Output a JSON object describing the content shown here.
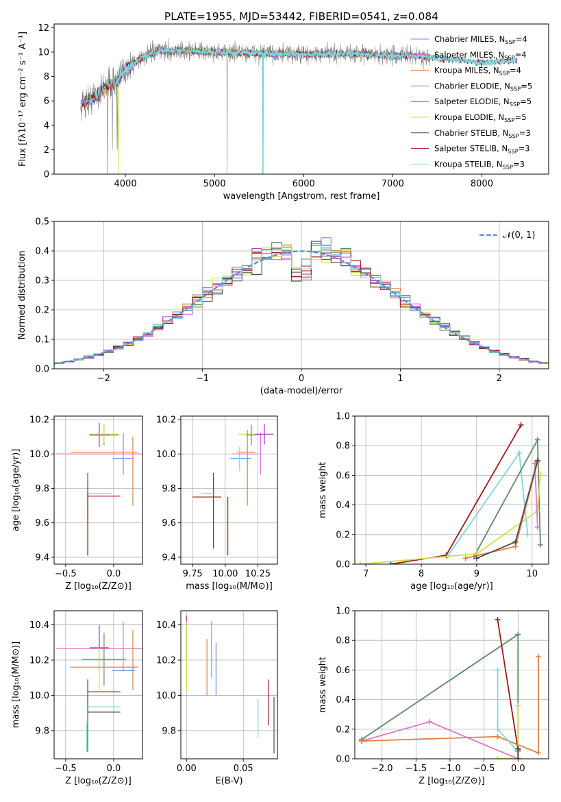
{
  "title": "PLATE=1955, MJD=53442, FIBERID=0541, z=0.084",
  "colors": {
    "Chabrier MILES": "#5b8ff0",
    "Salpeter MILES": "#d55ed6",
    "Kroupa MILES": "#e0803c",
    "Chabrier ELODIE": "#5d8a63",
    "Salpeter ELODIE": "#a32cc4",
    "Kroupa ELODIE": "#d4de4a",
    "Chabrier STELIB": "#4a4a4a",
    "Salpeter STELIB": "#a01818",
    "Kroupa STELIB": "#7fd6df",
    "data": "#808080",
    "gaussian": "#5b8bd6",
    "pink": "#e377c2"
  },
  "chart_data": [
    {
      "id": "spectrum",
      "type": "line",
      "xlabel": "wavelength [Angstrom, rest frame]",
      "ylabel": "Flux [fλ10⁻¹⁷ erg cm⁻² s⁻¹ A⁻¹]",
      "xlim": [
        3200,
        8750
      ],
      "ylim": [
        0,
        12.3
      ],
      "xticks": [
        4000,
        5000,
        6000,
        7000,
        8000
      ],
      "yticks": [
        0,
        2,
        4,
        6,
        8,
        10,
        12
      ],
      "grid": false,
      "legend_position": "top-right",
      "legend": [
        {
          "main": "Chabrier MILES, N",
          "sub": "SSP",
          "tail": "=4"
        },
        {
          "main": "Salpeter MILES, N",
          "sub": "SSP",
          "tail": "=4"
        },
        {
          "main": "Kroupa MILES, N",
          "sub": "SSP",
          "tail": "=4"
        },
        {
          "main": "Chabrier ELODIE, N",
          "sub": "SSP",
          "tail": "=5"
        },
        {
          "main": "Salpeter ELODIE, N",
          "sub": "SSP",
          "tail": "=5"
        },
        {
          "main": "Kroupa ELODIE, N",
          "sub": "SSP",
          "tail": "=5"
        },
        {
          "main": "Chabrier STELIB, N",
          "sub": "SSP",
          "tail": "=3"
        },
        {
          "main": "Salpeter STELIB, N",
          "sub": "SSP",
          "tail": "=3"
        },
        {
          "main": "Kroupa STELIB, N",
          "sub": "SSP",
          "tail": "=3"
        }
      ],
      "continuum": {
        "x": [
          3500,
          3600,
          3700,
          3800,
          3900,
          4000,
          4100,
          4200,
          4300,
          4400,
          4500,
          4700,
          5000,
          5500,
          6000,
          6500,
          7000,
          7300,
          7500,
          7800,
          8000,
          8300
        ],
        "y": [
          5.7,
          6.1,
          6.6,
          7.3,
          7.5,
          8.6,
          9.1,
          9.6,
          9.9,
          10.1,
          10.1,
          10.1,
          10.0,
          9.9,
          9.8,
          9.9,
          9.7,
          9.7,
          9.5,
          9.3,
          9.1,
          9.3
        ]
      },
      "data_range": [
        3500,
        7420
      ],
      "model_range": [
        3500,
        8400
      ]
    },
    {
      "id": "residuals",
      "type": "line",
      "xlabel": "(data-model)/error",
      "ylabel": "Normed distribution",
      "xlim": [
        -2.5,
        2.5
      ],
      "ylim": [
        0,
        0.5
      ],
      "xticks": [
        -2,
        -1,
        0,
        1,
        2
      ],
      "yticks": [
        0.0,
        0.1,
        0.2,
        0.3,
        0.4,
        0.5
      ],
      "grid": true,
      "legend_position": "top-right",
      "legend": [
        {
          "main": "𝒩(0, 1)",
          "sub": "",
          "tail": ""
        }
      ],
      "bin_width": 0.1
    },
    {
      "id": "age-vs-Z",
      "type": "scatter",
      "xlabel": "Z [log₁₀(Z/Z⊙)]",
      "ylabel": "age  [log₁₀(age/yr)]",
      "xlim": [
        -0.62,
        0.3
      ],
      "ylim": [
        9.36,
        10.22
      ],
      "xticks": [
        -0.5,
        0.0
      ],
      "yticks": [
        9.4,
        9.6,
        9.8,
        10.0,
        10.2
      ],
      "grid": true,
      "crosses": [
        {
          "model": "Chabrier MILES",
          "x": 0.1,
          "xerr": 0.11,
          "y": 9.975,
          "yerr": 0.0
        },
        {
          "model": "Salpeter MILES",
          "x": 0.1,
          "xerr": 0.0,
          "y": 10.0,
          "yerr": 0.12
        },
        {
          "model": "Kroupa MILES",
          "x": 0.2,
          "xerr": 0.0,
          "y": 9.9,
          "yerr": 0.2
        },
        {
          "model": "Chabrier ELODIE",
          "x": -0.1,
          "xerr": 0.15,
          "y": 10.11,
          "yerr": 0.06
        },
        {
          "model": "Salpeter ELODIE",
          "x": -0.15,
          "xerr": 0.1,
          "y": 10.11,
          "yerr": 0.07
        },
        {
          "model": "Kroupa ELODIE",
          "x": -0.1,
          "xerr": 0.16,
          "y": 10.115,
          "yerr": 0.05
        },
        {
          "model": "Chabrier STELIB",
          "x": -0.27,
          "xerr": 0.0,
          "y": 9.65,
          "yerr": 0.24
        },
        {
          "model": "Salpeter STELIB",
          "x": -0.1,
          "xerr": 0.17,
          "y": 9.755,
          "yerr": 0.0
        },
        {
          "model": "Kroupa STELIB",
          "x": -0.15,
          "xerr": 0.13,
          "y": 9.77,
          "yerr": 0.0
        },
        {
          "model": "pink",
          "x": -0.15,
          "xerr": 0.45,
          "y": 10.0,
          "yerr": 0.0
        },
        {
          "model": "Kroupa MILES",
          "x": -0.1,
          "xerr": 0.35,
          "y": 10.01,
          "yerr": 0.0
        },
        {
          "model": "Chabrier STELIB",
          "x": -0.27,
          "xerr": 0.0,
          "y": 9.72,
          "yerr": 0.09
        },
        {
          "model": "Salpeter STELIB",
          "x": -0.27,
          "xerr": 0.0,
          "y": 9.59,
          "yerr": 0.18
        }
      ]
    },
    {
      "id": "age-vs-mass",
      "type": "scatter",
      "xlabel": "mass [log₁₀(M/M⊙)]",
      "ylabel": "",
      "xlim": [
        9.66,
        10.4
      ],
      "ylim": [
        9.36,
        10.22
      ],
      "xticks": [
        9.75,
        10.0,
        10.25
      ],
      "xticklabels": [
        "9.75",
        "10.00",
        "10.25"
      ],
      "yticks": [
        9.4,
        9.6,
        9.8,
        10.0,
        10.2
      ],
      "grid": true,
      "crosses": [
        {
          "model": "Chabrier MILES",
          "x": 10.12,
          "xerr": 0.08,
          "y": 9.975,
          "yerr": 0.0
        },
        {
          "model": "Salpeter MILES",
          "x": 10.27,
          "xerr": 0.0,
          "y": 10.0,
          "yerr": 0.12
        },
        {
          "model": "Kroupa MILES",
          "x": 10.16,
          "xerr": 0.07,
          "y": 10.01,
          "yerr": 0.0
        },
        {
          "model": "Chabrier ELODIE",
          "x": 10.2,
          "xerr": 0.04,
          "y": 10.11,
          "yerr": 0.06
        },
        {
          "model": "Salpeter ELODIE",
          "x": 10.3,
          "xerr": 0.07,
          "y": 10.115,
          "yerr": 0.06
        },
        {
          "model": "Kroupa ELODIE",
          "x": 10.16,
          "xerr": 0.06,
          "y": 10.115,
          "yerr": 0.0
        },
        {
          "model": "Chabrier STELIB",
          "x": 9.91,
          "xerr": 0.0,
          "y": 9.67,
          "yerr": 0.22
        },
        {
          "model": "Salpeter STELIB",
          "x": 9.86,
          "xerr": 0.11,
          "y": 9.75,
          "yerr": 0.0
        },
        {
          "model": "Kroupa STELIB",
          "x": 9.87,
          "xerr": 0.05,
          "y": 9.77,
          "yerr": 0.0
        },
        {
          "model": "Salpeter STELIB",
          "x": 10.02,
          "xerr": 0.0,
          "y": 9.58,
          "yerr": 0.17
        },
        {
          "model": "Kroupa MILES",
          "x": 10.17,
          "xerr": 0.0,
          "y": 9.92,
          "yerr": 0.22
        },
        {
          "model": "Kroupa STELIB",
          "x": 10.11,
          "xerr": 0.0,
          "y": 9.97,
          "yerr": 0.07
        },
        {
          "model": "pink",
          "x": 10.15,
          "xerr": 0.1,
          "y": 10.0,
          "yerr": 0.0
        }
      ]
    },
    {
      "id": "mass-weight-vs-age",
      "type": "line",
      "xlabel": "age  [log₁₀(age/yr)]",
      "ylabel": "mass weight",
      "xlim": [
        6.8,
        10.3
      ],
      "ylim": [
        0,
        1.0
      ],
      "xticks": [
        7,
        8,
        9,
        10
      ],
      "yticks": [
        0.0,
        0.2,
        0.4,
        0.6,
        0.8,
        1.0
      ],
      "grid": true,
      "series": [
        {
          "model": "Salpeter STELIB",
          "x": [
            7.45,
            8.45,
            9.8
          ],
          "y": [
            0.0,
            0.06,
            0.94
          ]
        },
        {
          "model": "Kroupa STELIB",
          "x": [
            8.47,
            9.77,
            9.92
          ],
          "y": [
            0.05,
            0.75,
            0.2
          ]
        },
        {
          "model": "Chabrier ELODIE",
          "x": [
            8.95,
            10.1,
            10.15
          ],
          "y": [
            0.05,
            0.84,
            0.13
          ]
        },
        {
          "model": "Kroupa ELODIE",
          "x": [
            6.9,
            9.0,
            10.1,
            10.15
          ],
          "y": [
            0.0,
            0.07,
            0.36,
            0.61
          ]
        },
        {
          "model": "Kroupa MILES",
          "x": [
            8.8,
            9.7,
            10.1
          ],
          "y": [
            0.04,
            0.12,
            0.69
          ]
        },
        {
          "model": "pink",
          "x": [
            10.05,
            10.1
          ],
          "y": [
            0.68,
            0.25
          ]
        },
        {
          "model": "Chabrier STELIB",
          "x": [
            9.0,
            9.7,
            10.1
          ],
          "y": [
            0.04,
            0.15,
            0.7
          ]
        }
      ]
    },
    {
      "id": "mass-vs-Z",
      "type": "scatter",
      "xlabel": "Z [log₁₀(Z/Z⊙)]",
      "ylabel": "mass [log₁₀(M/M⊙)]",
      "xlim": [
        -0.62,
        0.3
      ],
      "ylim": [
        9.64,
        10.48
      ],
      "xticks": [
        -0.5,
        0.0
      ],
      "yticks": [
        9.8,
        10.0,
        10.2,
        10.4
      ],
      "grid": true,
      "crosses": [
        {
          "model": "Salpeter ELODIE",
          "x": -0.15,
          "xerr": 0.1,
          "y": 10.27,
          "yerr": 0.13
        },
        {
          "model": "pink",
          "x": -0.15,
          "xerr": 0.45,
          "y": 10.265,
          "yerr": 0.0
        },
        {
          "model": "pink",
          "x": 0.1,
          "xerr": 0.0,
          "y": 10.28,
          "yerr": 0.14
        },
        {
          "model": "Chabrier ELODIE",
          "x": -0.1,
          "xerr": 0.23,
          "y": 10.205,
          "yerr": 0.15
        },
        {
          "model": "Kroupa ELODIE",
          "x": -0.15,
          "xerr": 0.0,
          "y": 10.15,
          "yerr": 0.12
        },
        {
          "model": "Kroupa MILES",
          "x": -0.1,
          "xerr": 0.35,
          "y": 10.16,
          "yerr": 0.0
        },
        {
          "model": "Kroupa MILES",
          "x": 0.2,
          "xerr": 0.0,
          "y": 10.2,
          "yerr": 0.17
        },
        {
          "model": "Chabrier MILES",
          "x": 0.1,
          "xerr": 0.12,
          "y": 10.14,
          "yerr": 0.0
        },
        {
          "model": "Salpeter STELIB",
          "x": -0.27,
          "xerr": 0.0,
          "y": 10.02,
          "yerr": 0.07
        },
        {
          "model": "Salpeter STELIB",
          "x": -0.1,
          "xerr": 0.17,
          "y": 10.02,
          "yerr": 0.0
        },
        {
          "model": "Kroupa STELIB",
          "x": -0.1,
          "xerr": 0.17,
          "y": 9.935,
          "yerr": 0.0
        },
        {
          "model": "Chabrier STELIB",
          "x": -0.1,
          "xerr": 0.17,
          "y": 9.905,
          "yerr": 0.0
        },
        {
          "model": "Chabrier STELIB",
          "x": -0.27,
          "xerr": 0.0,
          "y": 9.83,
          "yerr": 0.15
        },
        {
          "model": "Kroupa STELIB",
          "x": -0.28,
          "xerr": 0.0,
          "y": 9.76,
          "yerr": 0.08
        }
      ]
    },
    {
      "id": "mass-vs-EBV",
      "type": "scatter",
      "xlabel": "E(B-V)",
      "ylabel": "",
      "xlim": [
        -0.005,
        0.08
      ],
      "ylim": [
        9.64,
        10.48
      ],
      "xticks": [
        0.0,
        0.05
      ],
      "xticklabels": [
        "0.00",
        "0.05"
      ],
      "yticks": [
        9.8,
        10.0,
        10.2,
        10.4
      ],
      "grid": true,
      "crosses": [
        {
          "model": "Salpeter ELODIE",
          "x": 0.0,
          "xerr": 0.0,
          "y": 10.33,
          "yerr": 0.12
        },
        {
          "model": "Kroupa ELODIE",
          "x": 0.0,
          "xerr": 0.0,
          "y": 10.22,
          "yerr": 0.2
        },
        {
          "model": "pink",
          "x": 0.022,
          "xerr": 0.0,
          "y": 10.26,
          "yerr": 0.16
        },
        {
          "model": "Kroupa MILES",
          "x": 0.018,
          "xerr": 0.0,
          "y": 10.16,
          "yerr": 0.16
        },
        {
          "model": "Chabrier MILES",
          "x": 0.026,
          "xerr": 0.0,
          "y": 10.15,
          "yerr": 0.15
        },
        {
          "model": "Kroupa STELIB",
          "x": 0.063,
          "xerr": 0.0,
          "y": 9.87,
          "yerr": 0.11
        },
        {
          "model": "Salpeter STELIB",
          "x": 0.072,
          "xerr": 0.0,
          "y": 9.96,
          "yerr": 0.13
        },
        {
          "model": "Chabrier STELIB",
          "x": 0.077,
          "xerr": 0.0,
          "y": 9.83,
          "yerr": 0.16
        }
      ]
    },
    {
      "id": "mass-weight-vs-Z",
      "type": "line",
      "xlabel": "Z [log₁₀(Z/Z⊙)]",
      "ylabel": "mass weight",
      "xlim": [
        -2.4,
        0.45
      ],
      "ylim": [
        0,
        1.0
      ],
      "xticks": [
        -2.0,
        -1.5,
        -1.0,
        -0.5,
        0.0
      ],
      "xticklabels": [
        "−2.0",
        "−1.5",
        "−1.0",
        "−0.5",
        "0.0"
      ],
      "yticks": [
        0.0,
        0.2,
        0.4,
        0.6,
        0.8,
        1.0
      ],
      "grid": true,
      "series": [
        {
          "model": "Chabrier ELODIE",
          "x": [
            -2.3,
            0.0,
            0.0
          ],
          "y": [
            0.13,
            0.84,
            0.05
          ]
        },
        {
          "model": "pink",
          "x": [
            -2.3,
            -1.3,
            0.0
          ],
          "y": [
            0.12,
            0.25,
            0.0
          ]
        },
        {
          "model": "Kroupa MILES",
          "x": [
            -2.3,
            -0.3,
            0.3,
            0.3
          ],
          "y": [
            0.12,
            0.15,
            0.04,
            0.69
          ]
        },
        {
          "model": "Salpeter STELIB",
          "x": [
            -0.3,
            0.0,
            0.0
          ],
          "y": [
            0.94,
            0.06,
            0.0
          ]
        },
        {
          "model": "Kroupa STELIB",
          "x": [
            -0.3,
            -0.3,
            0.0
          ],
          "y": [
            0.6,
            0.2,
            0.05
          ]
        },
        {
          "model": "Kroupa ELODIE",
          "x": [
            -0.3,
            0.0,
            0.0
          ],
          "y": [
            0.0,
            0.0,
            0.36
          ]
        },
        {
          "model": "Chabrier STELIB",
          "x": [
            0.0,
            0.0
          ],
          "y": [
            0.0,
            0.07
          ]
        }
      ]
    }
  ]
}
